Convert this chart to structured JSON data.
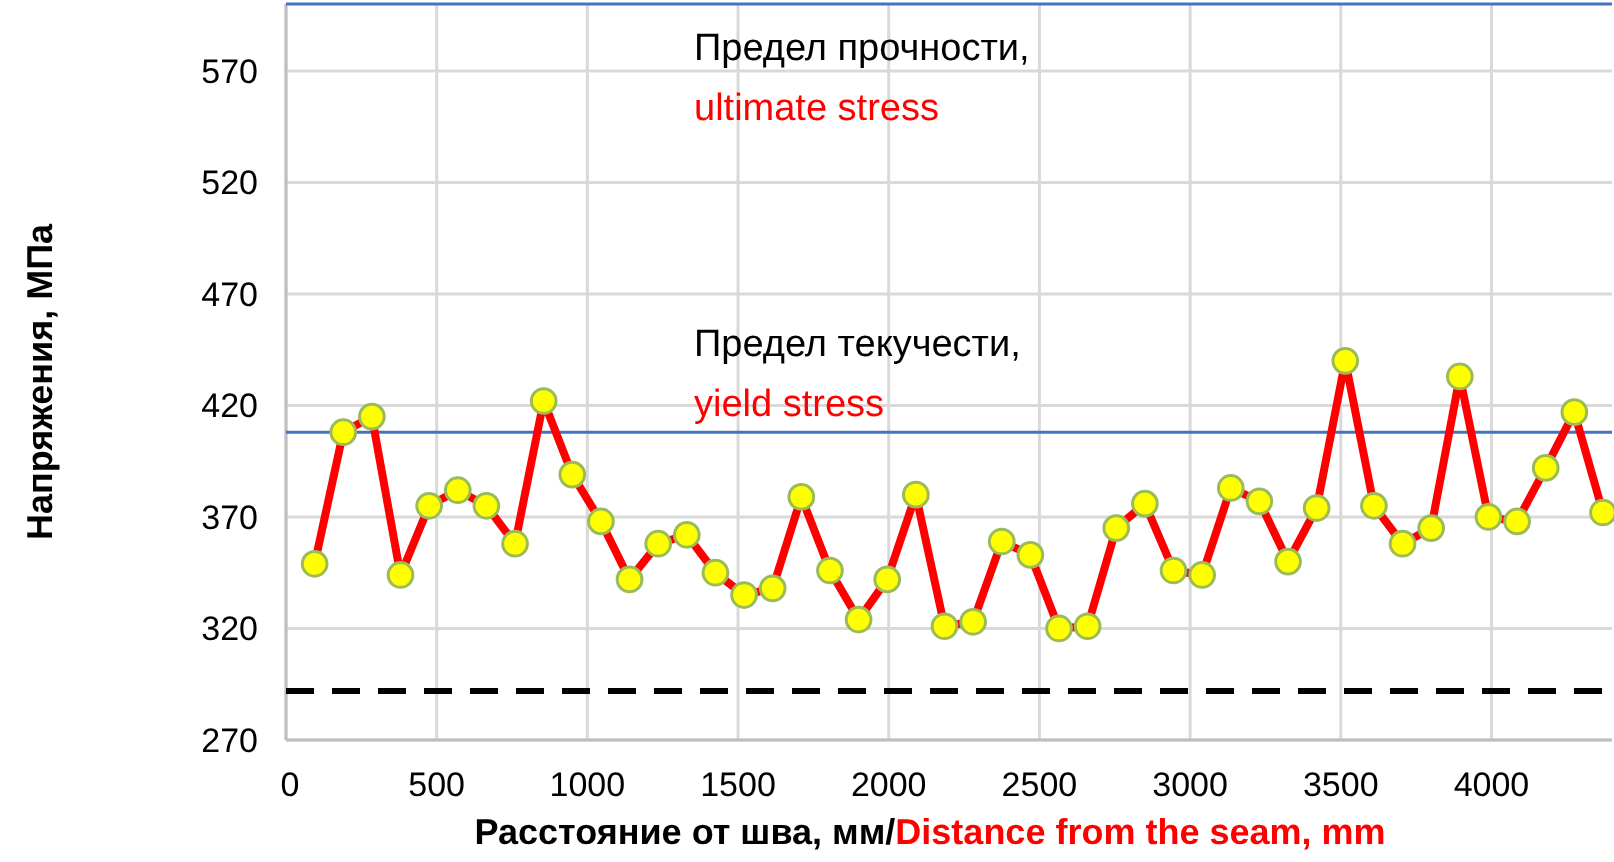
{
  "chart_data": {
    "type": "line",
    "xlabel": "Расстояние от шва, мм/Distance from the seam, mm",
    "ylabel": "Напряжения, МПа",
    "x": [
      95,
      190,
      285,
      380,
      475,
      570,
      665,
      760,
      855,
      950,
      1045,
      1140,
      1235,
      1330,
      1425,
      1520,
      1615,
      1710,
      1805,
      1900,
      1995,
      2090,
      2185,
      2280,
      2375,
      2470,
      2565,
      2660,
      2755,
      2850,
      2945,
      3040,
      3135,
      3230,
      3325,
      3420,
      3515,
      3610,
      3705,
      3800,
      3895,
      3990,
      4085,
      4180,
      4275,
      4370
    ],
    "series": [
      {
        "color": "#ff0000",
        "values": [
          349,
          408,
          415,
          344,
          375,
          382,
          375,
          358,
          422,
          389,
          368,
          342,
          358,
          362,
          345,
          335,
          338,
          379,
          346,
          324,
          342,
          380,
          321,
          323,
          359,
          353,
          320,
          321,
          365,
          376,
          346,
          344,
          383,
          377,
          350,
          374,
          440,
          375,
          358,
          365,
          433,
          370,
          368,
          392,
          417,
          372
        ]
      }
    ],
    "xlim": [
      0,
      4400
    ],
    "xticks": [
      0,
      500,
      1000,
      1500,
      2000,
      2500,
      3000,
      3500,
      4000
    ],
    "ylim": [
      270,
      600
    ],
    "yticks": [
      270,
      320,
      370,
      420,
      470,
      520,
      570
    ],
    "grid": true,
    "marker": "circle",
    "line_style": "solid",
    "ref_lines": [
      {
        "axis": "y",
        "value": 600,
        "label": "Предел прочности,\nultimate stress",
        "color": "#4472c4"
      },
      {
        "axis": "y",
        "value": 408,
        "label": "Предел текучести,\nyield stress",
        "color": "#4472c4"
      },
      {
        "axis": "y",
        "value": 292,
        "color": "#000000",
        "line_style": "dashed"
      }
    ]
  }
}
